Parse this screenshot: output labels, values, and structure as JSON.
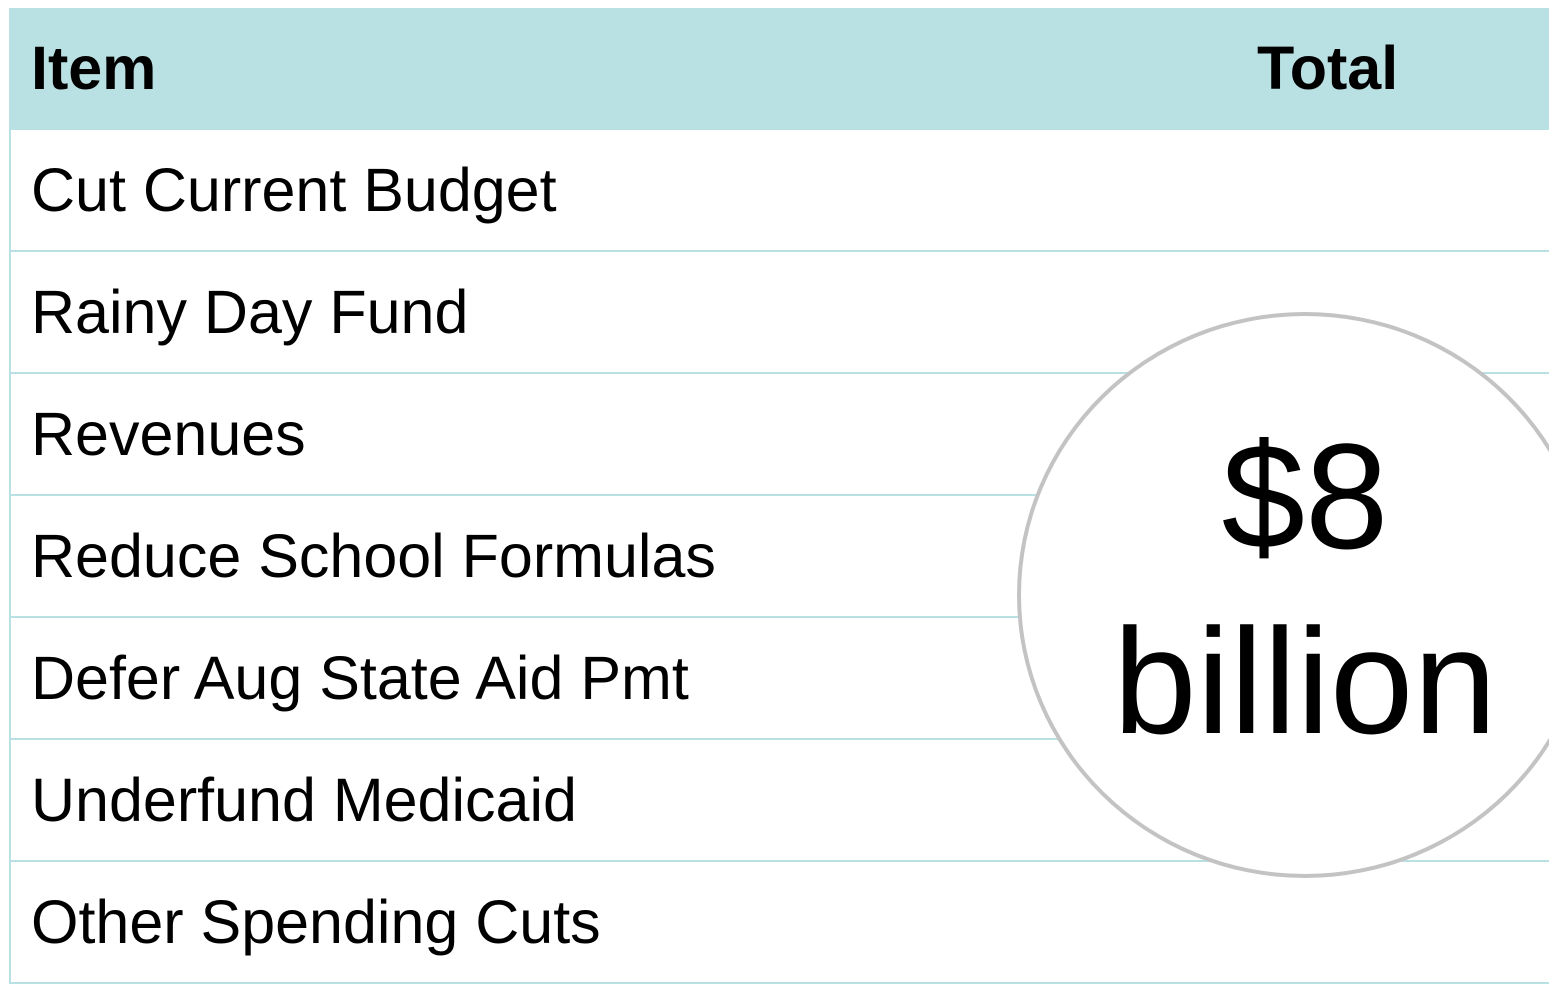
{
  "table": {
    "header": [
      "Item",
      "Total"
    ],
    "rows": [
      "Cut Current Budget",
      "Rainy Day Fund",
      "Revenues",
      "Reduce School Formulas",
      "Defer Aug State Aid Pmt",
      "Underfund Medicaid",
      "Other Spending Cuts"
    ]
  },
  "callout": {
    "lines": [
      "$8",
      "billion"
    ]
  }
}
